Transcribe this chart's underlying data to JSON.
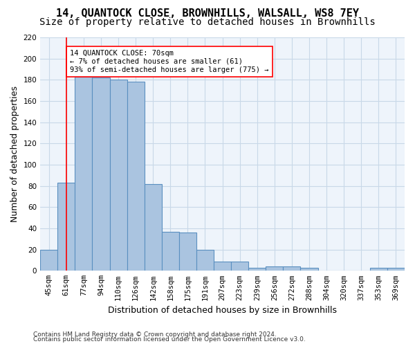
{
  "title1": "14, QUANTOCK CLOSE, BROWNHILLS, WALSALL, WS8 7EY",
  "title2": "Size of property relative to detached houses in Brownhills",
  "xlabel": "Distribution of detached houses by size in Brownhills",
  "ylabel": "Number of detached properties",
  "categories": [
    "45sqm",
    "61sqm",
    "77sqm",
    "94sqm",
    "110sqm",
    "126sqm",
    "142sqm",
    "158sqm",
    "175sqm",
    "191sqm",
    "207sqm",
    "223sqm",
    "239sqm",
    "256sqm",
    "272sqm",
    "288sqm",
    "304sqm",
    "320sqm",
    "337sqm",
    "353sqm",
    "369sqm"
  ],
  "values": [
    20,
    83,
    183,
    182,
    180,
    178,
    82,
    37,
    36,
    20,
    9,
    9,
    3,
    4,
    4,
    3,
    0,
    0,
    0,
    3,
    3
  ],
  "bar_color": "#aac4e0",
  "bar_edge_color": "#5a8fc0",
  "grid_color": "#c8d8e8",
  "background_color": "#eef4fb",
  "annotation_box_text": "14 QUANTOCK CLOSE: 70sqm\n← 7% of detached houses are smaller (61)\n93% of semi-detached houses are larger (775) →",
  "red_line_x": 1,
  "ylim": [
    0,
    220
  ],
  "yticks": [
    0,
    20,
    40,
    60,
    80,
    100,
    120,
    140,
    160,
    180,
    200,
    220
  ],
  "footnote1": "Contains HM Land Registry data © Crown copyright and database right 2024.",
  "footnote2": "Contains public sector information licensed under the Open Government Licence v3.0.",
  "title1_fontsize": 11,
  "title2_fontsize": 10,
  "xlabel_fontsize": 9,
  "ylabel_fontsize": 9,
  "tick_fontsize": 7.5,
  "footnote_fontsize": 6.5
}
